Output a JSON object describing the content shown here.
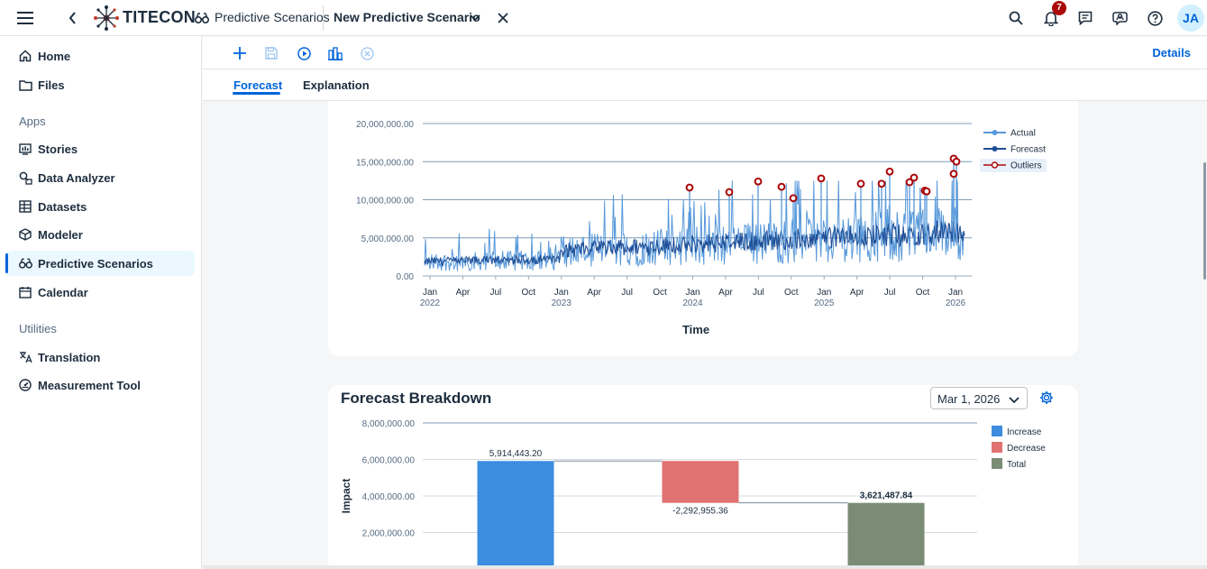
{
  "shell": {
    "brand": "TITECON",
    "breadcrumb": "Predictive Scenarios",
    "document_title": "New Predictive Scenario",
    "notification_count": "7",
    "avatar_initials": "JA"
  },
  "sidenav": {
    "items_top": [
      {
        "label": "Home",
        "icon": "home-icon"
      },
      {
        "label": "Files",
        "icon": "folder-icon"
      }
    ],
    "apps_label": "Apps",
    "apps": [
      {
        "label": "Stories",
        "icon": "stories-icon"
      },
      {
        "label": "Data Analyzer",
        "icon": "data-analyzer-icon"
      },
      {
        "label": "Datasets",
        "icon": "datasets-icon"
      },
      {
        "label": "Modeler",
        "icon": "modeler-icon"
      },
      {
        "label": "Predictive Scenarios",
        "icon": "binoculars-icon"
      },
      {
        "label": "Calendar",
        "icon": "calendar-icon"
      }
    ],
    "utilities_label": "Utilities",
    "utilities": [
      {
        "label": "Translation",
        "icon": "translation-icon"
      },
      {
        "label": "Measurement Tool",
        "icon": "measurement-icon"
      }
    ]
  },
  "toolbar": {
    "details_label": "Details"
  },
  "tabs": [
    {
      "label": "Forecast"
    },
    {
      "label": "Explanation"
    }
  ],
  "forecast_chart": {
    "x_label": "Time",
    "legend": [
      "Actual",
      "Forecast",
      "Outliers"
    ],
    "y_ticks": [
      "20,000,000.00",
      "15,000,000.00",
      "10,000,000.00",
      "5,000,000.00",
      "0.00"
    ],
    "x_ticks": [
      "Jan",
      "Apr",
      "Jul",
      "Oct",
      "Jan",
      "Apr",
      "Jul",
      "Oct",
      "Jan",
      "Apr",
      "Jul",
      "Oct",
      "Jan",
      "Apr",
      "Jul",
      "Oct",
      "Jan"
    ],
    "x_years": [
      "2022",
      "2023",
      "2024",
      "2025",
      "2026"
    ],
    "colors": {
      "actual": "#5899da",
      "forecast": "#1f4e96",
      "outlier": "#aa0808"
    }
  },
  "breakdown": {
    "title": "Forecast Breakdown",
    "date": "Mar 1, 2026",
    "y_label": "Impact",
    "y_ticks": [
      "8,000,000.00",
      "6,000,000.00",
      "4,000,000.00",
      "2,000,000.00"
    ],
    "legend": [
      "Increase",
      "Decrease",
      "Total"
    ],
    "bars": [
      {
        "label": "5,914,443.20",
        "value": 5914443.2,
        "kind": "increase"
      },
      {
        "label": "-2,292,955.36",
        "value": -2292955.36,
        "kind": "decrease"
      },
      {
        "label": "3,621,487.84",
        "value": 3621487.84,
        "kind": "total"
      }
    ],
    "colors": {
      "increase": "#3c8de0",
      "decrease": "#e07271",
      "total": "#7a8c76"
    }
  }
}
